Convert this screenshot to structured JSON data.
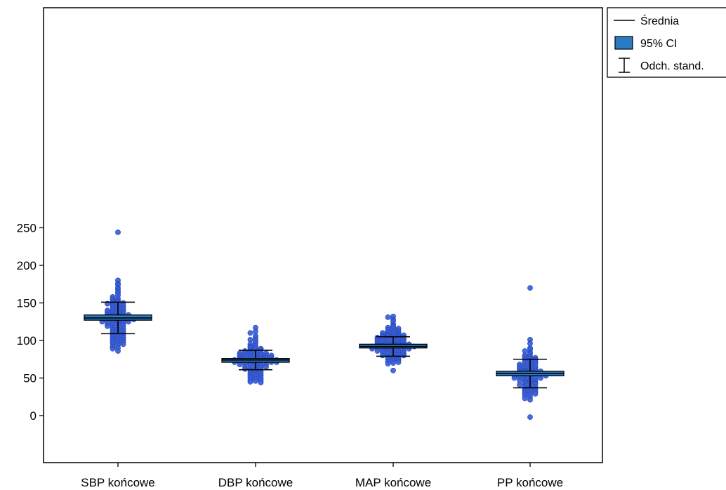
{
  "chart_data": {
    "type": "scatter",
    "subtype": "dot-plot-with-mean-ci-sd",
    "title": "",
    "xlabel": "",
    "ylabel": "",
    "ylim": [
      -30,
      270
    ],
    "yticks": [
      0,
      50,
      100,
      150,
      200,
      250
    ],
    "grid": false,
    "legend_position": "top-right",
    "legend": {
      "mean_label": "Średnia",
      "ci_label": "95% CI",
      "sd_label": "Odch. stand."
    },
    "colors": {
      "points": "#3a5fd9",
      "points_edge": "#1f3fb0",
      "ci_box": "#2a7bc4",
      "ci_edge": "#000000",
      "axis": "#000000"
    },
    "categories": [
      "SBP końcowe",
      "DBP końcowe",
      "MAP końcowe",
      "PP końcowe"
    ],
    "groups": [
      {
        "name": "SBP końcowe",
        "mean": 130,
        "ci": [
          127,
          134
        ],
        "sd_low": 109,
        "sd_high": 151,
        "points": [
          244,
          180,
          176,
          174,
          170,
          168,
          165,
          163,
          160,
          158,
          156,
          155,
          153,
          152,
          151,
          150,
          150,
          149,
          148,
          147,
          146,
          145,
          144,
          143,
          142,
          141,
          140,
          140,
          139,
          138,
          137,
          137,
          136,
          135,
          135,
          134,
          134,
          133,
          133,
          132,
          132,
          131,
          131,
          130,
          130,
          130,
          129,
          129,
          128,
          128,
          127,
          127,
          126,
          126,
          125,
          125,
          124,
          124,
          123,
          122,
          121,
          121,
          120,
          119,
          118,
          117,
          116,
          115,
          114,
          113,
          112,
          111,
          110,
          109,
          108,
          107,
          106,
          105,
          104,
          103,
          102,
          101,
          100,
          99,
          98,
          97,
          96,
          95,
          94,
          92,
          90,
          89,
          86
        ]
      },
      {
        "name": "DBP końcowe",
        "mean": 74,
        "ci": [
          71,
          76
        ],
        "sd_low": 61,
        "sd_high": 87,
        "points": [
          117,
          112,
          110,
          106,
          103,
          101,
          99,
          97,
          95,
          93,
          92,
          91,
          90,
          89,
          88,
          87,
          87,
          86,
          85,
          85,
          84,
          84,
          83,
          83,
          82,
          82,
          81,
          81,
          80,
          80,
          80,
          79,
          79,
          78,
          78,
          77,
          77,
          77,
          76,
          76,
          76,
          75,
          75,
          75,
          74,
          74,
          74,
          73,
          73,
          73,
          72,
          72,
          72,
          71,
          71,
          71,
          70,
          70,
          69,
          69,
          68,
          68,
          67,
          67,
          66,
          65,
          65,
          64,
          63,
          63,
          62,
          61,
          60,
          59,
          58,
          57,
          56,
          55,
          54,
          53,
          52,
          51,
          50,
          49,
          48,
          47,
          46,
          45,
          44
        ]
      },
      {
        "name": "MAP końcowe",
        "mean": 92,
        "ci": [
          90,
          95
        ],
        "sd_low": 79,
        "sd_high": 105,
        "points": [
          132,
          131,
          128,
          126,
          122,
          120,
          118,
          117,
          116,
          115,
          114,
          113,
          112,
          111,
          110,
          110,
          109,
          108,
          108,
          107,
          107,
          106,
          106,
          105,
          105,
          104,
          104,
          103,
          103,
          102,
          102,
          101,
          101,
          100,
          100,
          99,
          99,
          98,
          98,
          97,
          97,
          96,
          96,
          95,
          95,
          95,
          94,
          94,
          94,
          93,
          93,
          93,
          92,
          92,
          92,
          91,
          91,
          91,
          90,
          90,
          90,
          89,
          89,
          88,
          88,
          87,
          87,
          86,
          86,
          85,
          85,
          84,
          84,
          83,
          82,
          82,
          81,
          80,
          80,
          79,
          78,
          77,
          76,
          75,
          74,
          73,
          72,
          71,
          70,
          69,
          60
        ]
      },
      {
        "name": "PP końcowe",
        "mean": 56,
        "ci": [
          53,
          59
        ],
        "sd_low": 37,
        "sd_high": 75,
        "points": [
          170,
          101,
          96,
          90,
          88,
          86,
          84,
          82,
          80,
          79,
          78,
          77,
          76,
          75,
          74,
          73,
          72,
          71,
          70,
          70,
          69,
          68,
          67,
          66,
          65,
          65,
          64,
          63,
          62,
          62,
          61,
          60,
          60,
          59,
          59,
          58,
          58,
          57,
          57,
          56,
          56,
          56,
          55,
          55,
          55,
          54,
          54,
          53,
          53,
          52,
          52,
          51,
          51,
          50,
          50,
          49,
          48,
          47,
          47,
          46,
          45,
          44,
          43,
          43,
          42,
          41,
          40,
          39,
          38,
          37,
          36,
          35,
          34,
          33,
          32,
          31,
          30,
          29,
          28,
          27,
          25,
          23,
          21,
          -2
        ]
      }
    ]
  }
}
